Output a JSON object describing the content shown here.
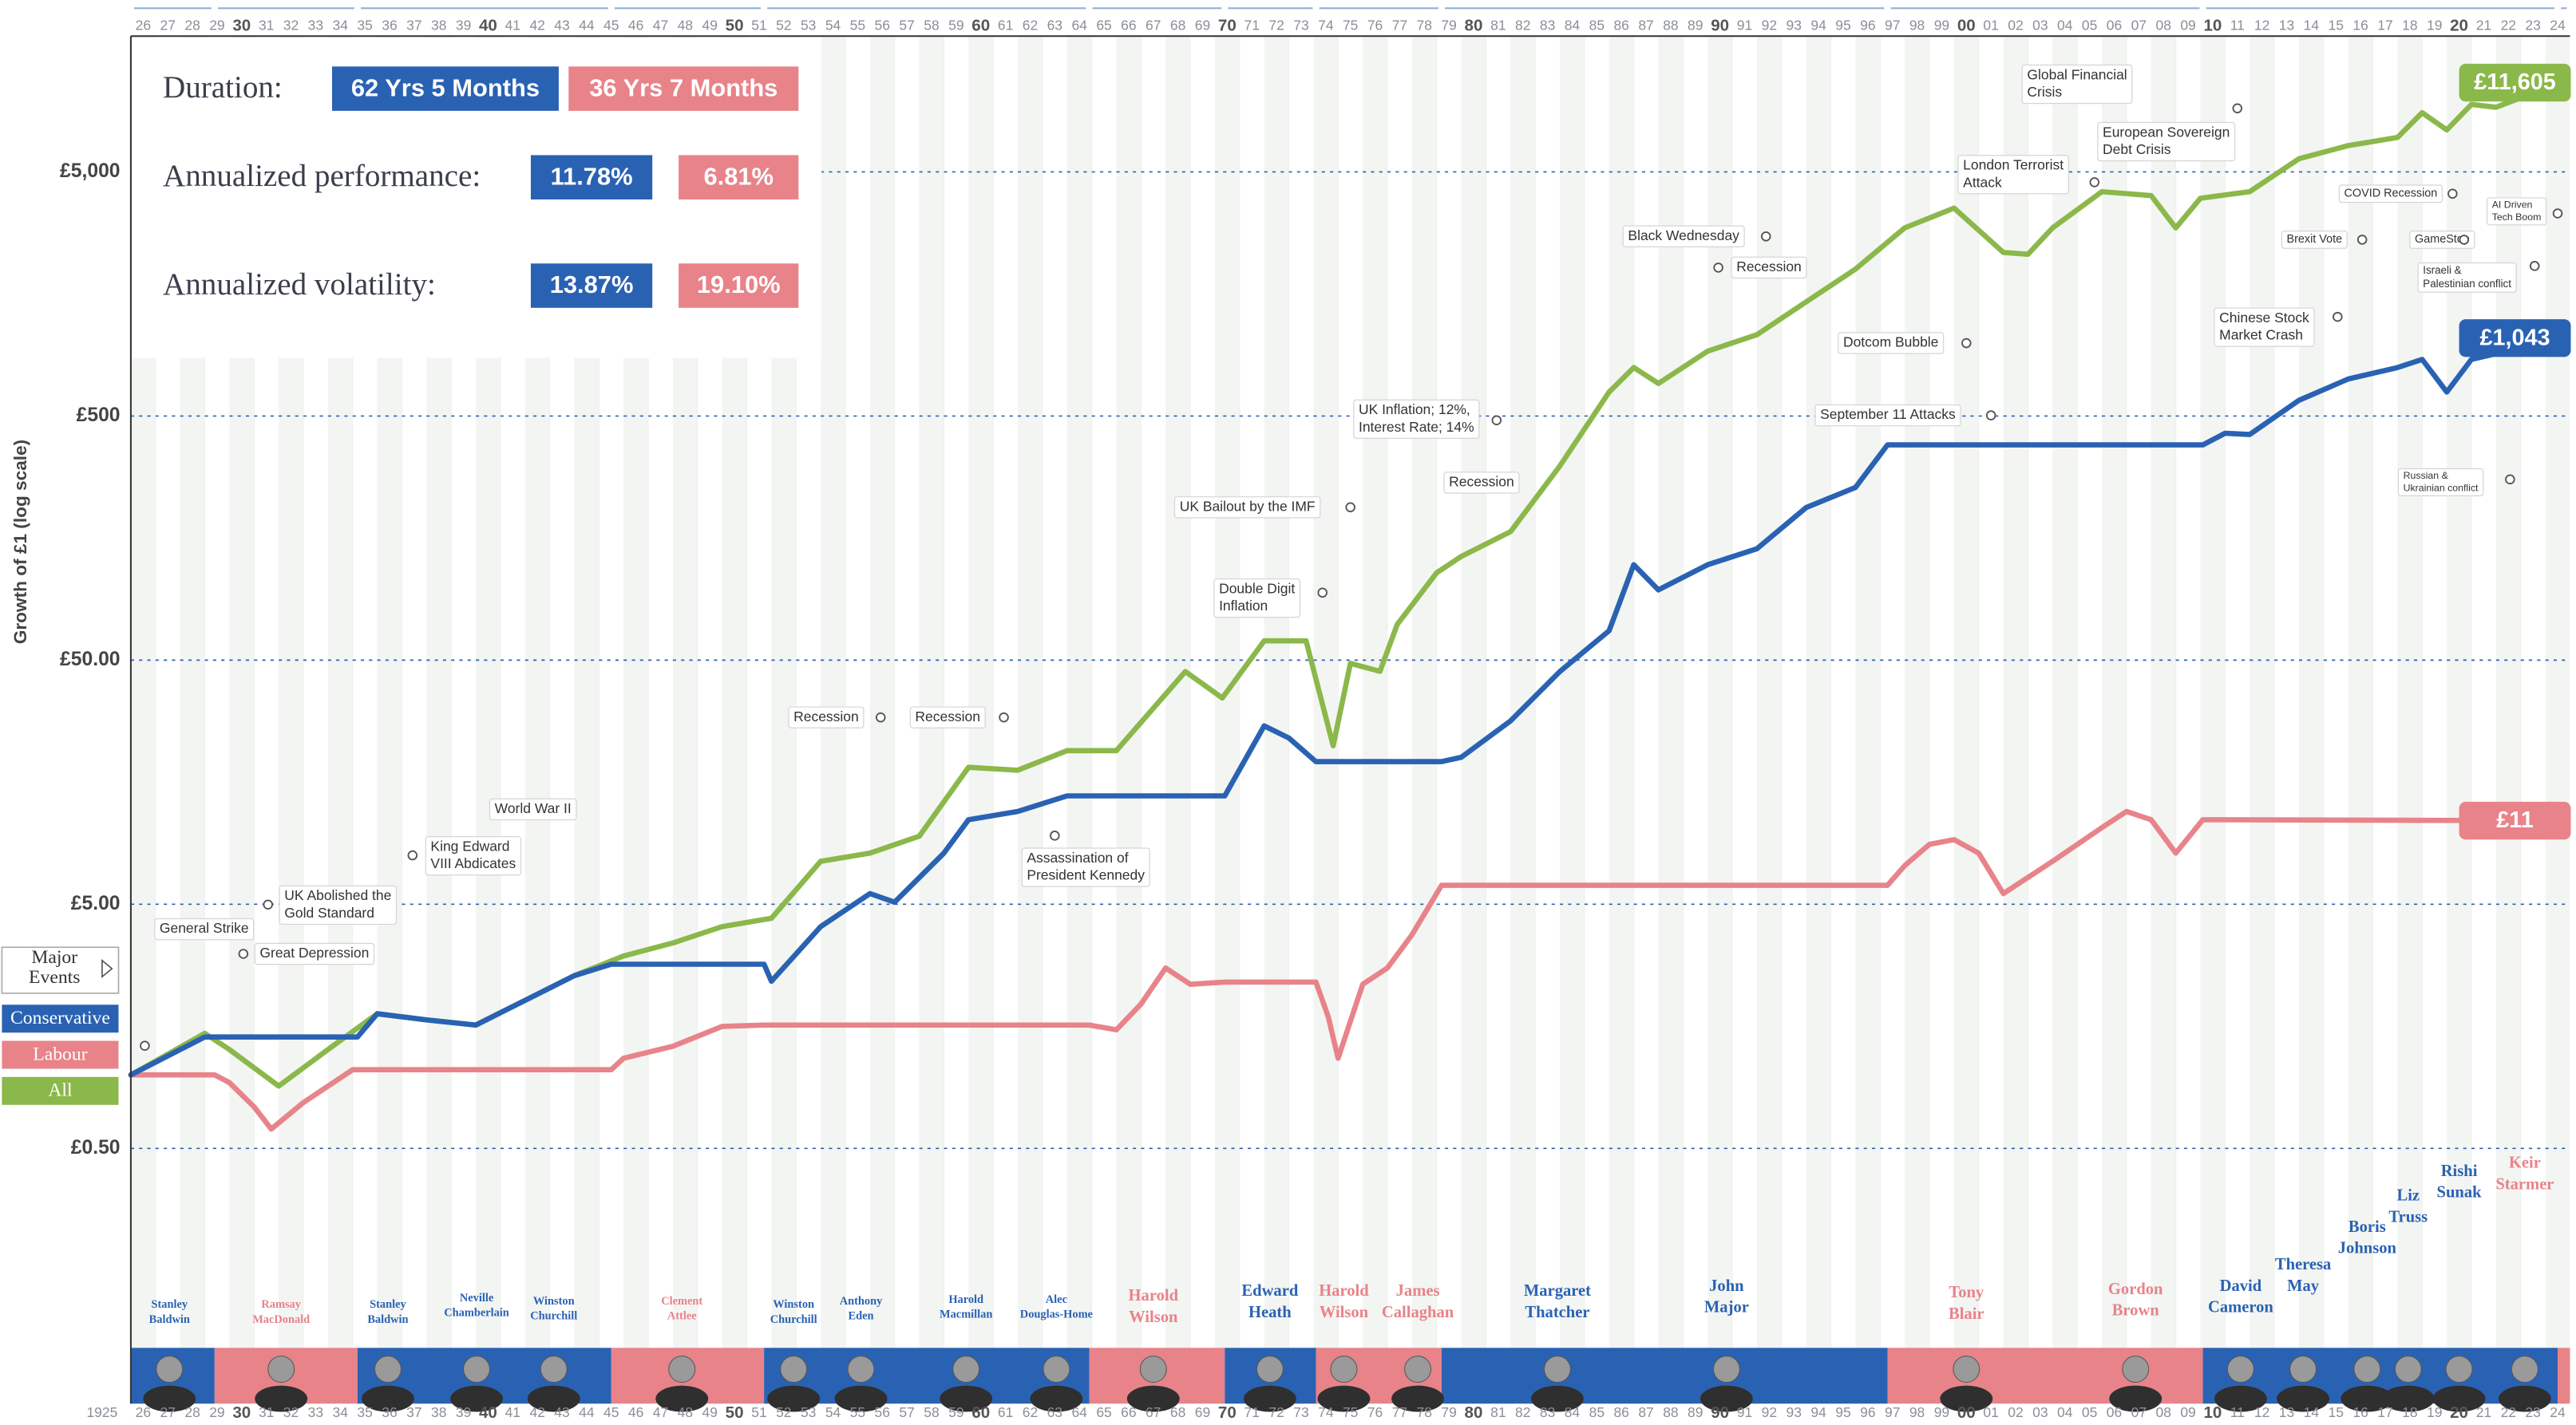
{
  "chart_data": {
    "type": "line",
    "y_label": "Growth of £1 (log scale)",
    "log_scale": true,
    "grid": true,
    "xlim": [
      1926,
      2025
    ],
    "ylim": [
      0.045,
      18000
    ],
    "yticks": [
      {
        "value": 0.5,
        "label": "£0.50"
      },
      {
        "value": 5,
        "label": "£5.00"
      },
      {
        "value": 50,
        "label": "£50.00"
      },
      {
        "value": 500,
        "label": "£500"
      },
      {
        "value": 5000,
        "label": "£5,000"
      }
    ],
    "x_start_label": "1925",
    "xticks": [
      {
        "value": 1926,
        "label": "26"
      },
      {
        "value": 1927,
        "label": "27"
      },
      {
        "value": 1928,
        "label": "28"
      },
      {
        "value": 1929,
        "label": "29"
      },
      {
        "value": 1930,
        "label": "30"
      },
      {
        "value": 1931,
        "label": "31"
      },
      {
        "value": 1932,
        "label": "32"
      },
      {
        "value": 1933,
        "label": "33"
      },
      {
        "value": 1934,
        "label": "34"
      },
      {
        "value": 1935,
        "label": "35"
      },
      {
        "value": 1936,
        "label": "36"
      },
      {
        "value": 1937,
        "label": "37"
      },
      {
        "value": 1938,
        "label": "38"
      },
      {
        "value": 1939,
        "label": "39"
      },
      {
        "value": 1940,
        "label": "40"
      },
      {
        "value": 1941,
        "label": "41"
      },
      {
        "value": 1942,
        "label": "42"
      },
      {
        "value": 1943,
        "label": "43"
      },
      {
        "value": 1944,
        "label": "44"
      },
      {
        "value": 1945,
        "label": "45"
      },
      {
        "value": 1946,
        "label": "46"
      },
      {
        "value": 1947,
        "label": "47"
      },
      {
        "value": 1948,
        "label": "48"
      },
      {
        "value": 1949,
        "label": "49"
      },
      {
        "value": 1950,
        "label": "50"
      },
      {
        "value": 1951,
        "label": "51"
      },
      {
        "value": 1952,
        "label": "52"
      },
      {
        "value": 1953,
        "label": "53"
      },
      {
        "value": 1954,
        "label": "54"
      },
      {
        "value": 1955,
        "label": "55"
      },
      {
        "value": 1956,
        "label": "56"
      },
      {
        "value": 1957,
        "label": "57"
      },
      {
        "value": 1958,
        "label": "58"
      },
      {
        "value": 1959,
        "label": "59"
      },
      {
        "value": 1960,
        "label": "60"
      },
      {
        "value": 1961,
        "label": "61"
      },
      {
        "value": 1962,
        "label": "62"
      },
      {
        "value": 1963,
        "label": "63"
      },
      {
        "value": 1964,
        "label": "64"
      },
      {
        "value": 1965,
        "label": "65"
      },
      {
        "value": 1966,
        "label": "66"
      },
      {
        "value": 1967,
        "label": "67"
      },
      {
        "value": 1968,
        "label": "68"
      },
      {
        "value": 1969,
        "label": "69"
      },
      {
        "value": 1970,
        "label": "70"
      },
      {
        "value": 1971,
        "label": "71"
      },
      {
        "value": 1972,
        "label": "72"
      },
      {
        "value": 1973,
        "label": "73"
      },
      {
        "value": 1974,
        "label": "74"
      },
      {
        "value": 1975,
        "label": "75"
      },
      {
        "value": 1976,
        "label": "76"
      },
      {
        "value": 1977,
        "label": "77"
      },
      {
        "value": 1978,
        "label": "78"
      },
      {
        "value": 1979,
        "label": "79"
      },
      {
        "value": 1980,
        "label": "80"
      },
      {
        "value": 1981,
        "label": "81"
      },
      {
        "value": 1982,
        "label": "82"
      },
      {
        "value": 1983,
        "label": "83"
      },
      {
        "value": 1984,
        "label": "84"
      },
      {
        "value": 1985,
        "label": "85"
      },
      {
        "value": 1986,
        "label": "86"
      },
      {
        "value": 1987,
        "label": "87"
      },
      {
        "value": 1988,
        "label": "88"
      },
      {
        "value": 1989,
        "label": "89"
      },
      {
        "value": 1990,
        "label": "90"
      },
      {
        "value": 1991,
        "label": "91"
      },
      {
        "value": 1992,
        "label": "92"
      },
      {
        "value": 1993,
        "label": "93"
      },
      {
        "value": 1994,
        "label": "94"
      },
      {
        "value": 1995,
        "label": "95"
      },
      {
        "value": 1996,
        "label": "96"
      },
      {
        "value": 1997,
        "label": "97"
      },
      {
        "value": 1998,
        "label": "98"
      },
      {
        "value": 1999,
        "label": "99"
      },
      {
        "value": 2000,
        "label": "00"
      },
      {
        "value": 2001,
        "label": "01"
      },
      {
        "value": 2002,
        "label": "02"
      },
      {
        "value": 2003,
        "label": "03"
      },
      {
        "value": 2004,
        "label": "04"
      },
      {
        "value": 2005,
        "label": "05"
      },
      {
        "value": 2006,
        "label": "06"
      },
      {
        "value": 2007,
        "label": "07"
      },
      {
        "value": 2008,
        "label": "08"
      },
      {
        "value": 2009,
        "label": "09"
      },
      {
        "value": 2010,
        "label": "10"
      },
      {
        "value": 2011,
        "label": "11"
      },
      {
        "value": 2012,
        "label": "12"
      },
      {
        "value": 2013,
        "label": "13"
      },
      {
        "value": 2014,
        "label": "14"
      },
      {
        "value": 2015,
        "label": "15"
      },
      {
        "value": 2016,
        "label": "16"
      },
      {
        "value": 2017,
        "label": "17"
      },
      {
        "value": 2018,
        "label": "18"
      },
      {
        "value": 2019,
        "label": "19"
      },
      {
        "value": 2020,
        "label": "20"
      },
      {
        "value": 2021,
        "label": "21"
      },
      {
        "value": 2022,
        "label": "22"
      },
      {
        "value": 2023,
        "label": "23"
      },
      {
        "value": 2024,
        "label": "24"
      }
    ],
    "series": [
      {
        "name": "Conservative",
        "color": "#2a62b3",
        "x": [
          1926,
          1929,
          1929.4,
          1935.2,
          1936,
          1938,
          1940,
          1942,
          1944,
          1945.5,
          1951.7,
          1952,
          1954,
          1956,
          1957,
          1959,
          1960,
          1962,
          1964,
          1964.9,
          1970.4,
          1972,
          1973,
          1974.1,
          1979.2,
          1980,
          1982,
          1984,
          1986,
          1987,
          1988,
          1990,
          1992,
          1994,
          1996,
          1997.3,
          2010.1,
          2011,
          2012,
          2014,
          2016,
          2018,
          2019,
          2020,
          2021,
          2022,
          2024,
          2024.5
        ],
        "values": [
          1,
          1.43,
          1.43,
          1.43,
          1.78,
          1.68,
          1.6,
          2.02,
          2.55,
          2.84,
          2.84,
          2.42,
          4.05,
          5.53,
          5.1,
          8.1,
          11.1,
          12,
          13.9,
          13.9,
          13.9,
          26.9,
          24,
          19.2,
          19.2,
          20,
          28.2,
          44.9,
          66,
          123,
          97,
          123,
          143,
          211,
          255,
          381,
          381,
          425,
          420,
          580,
          709,
          790,
          853,
          627,
          853,
          900,
          1029,
          1043
        ],
        "end_label": {
          "value": 1043,
          "label": "£1,043"
        }
      },
      {
        "name": "Labour",
        "color": "#e8838a",
        "x": [
          1926,
          1929.4,
          1930,
          1931,
          1931.7,
          1933,
          1935,
          1945.5,
          1946,
          1948,
          1950,
          1951.7,
          1964.9,
          1966,
          1967,
          1968,
          1969,
          1970.4,
          1974.1,
          1974.6,
          1975,
          1976,
          1977,
          1978,
          1979.2,
          1997.3,
          1998,
          1999,
          2000,
          2001,
          2002,
          2004,
          2006,
          2007,
          2008,
          2009,
          2010.1,
          2024.5
        ],
        "values": [
          1,
          1,
          0.93,
          0.74,
          0.6,
          0.77,
          1.05,
          1.05,
          1.17,
          1.31,
          1.58,
          1.6,
          1.6,
          1.53,
          1.95,
          2.74,
          2.35,
          2.4,
          2.4,
          1.73,
          1.17,
          2.35,
          2.74,
          3.75,
          5.98,
          5.98,
          7.2,
          8.8,
          9.2,
          8.1,
          5.53,
          7.5,
          10.3,
          12,
          11.1,
          8.1,
          11.1,
          11
        ],
        "end_label": {
          "value": 11,
          "label": "£11"
        }
      },
      {
        "name": "All",
        "color": "#8bb84a",
        "x": [
          1926,
          1929,
          1930,
          1932,
          1934,
          1936,
          1938,
          1940,
          1942,
          1944,
          1946,
          1948,
          1950,
          1952,
          1954,
          1956,
          1958,
          1960,
          1962,
          1964,
          1966,
          1968.8,
          1970.3,
          1972,
          1973.7,
          1974.8,
          1975.5,
          1976.7,
          1977.4,
          1979,
          1980,
          1982,
          1984,
          1986,
          1987,
          1988,
          1990,
          1992,
          1994,
          1996,
          1998,
          2000,
          2002,
          2003,
          2004,
          2006,
          2008,
          2009,
          2010,
          2012,
          2014,
          2016,
          2018,
          2019,
          2020,
          2021,
          2022,
          2024,
          2024.8
        ],
        "values": [
          1,
          1.48,
          1.27,
          0.9,
          1.27,
          1.78,
          1.68,
          1.6,
          2.02,
          2.55,
          3.07,
          3.47,
          4.05,
          4.38,
          7.5,
          8.1,
          9.5,
          18.2,
          17.7,
          21.3,
          21.3,
          44.9,
          35,
          60,
          60,
          22.3,
          48.5,
          45,
          70,
          114,
          133,
          168,
          312,
          627,
          790,
          680,
          922,
          1077,
          1468,
          2000,
          2950,
          3555,
          2340,
          2300,
          2950,
          4150,
          4000,
          2950,
          3900,
          4150,
          5660,
          6410,
          6920,
          8740,
          7430,
          9450,
          9200,
          11000,
          11605
        ],
        "end_label": {
          "value": 11605,
          "label": "£11,605"
        }
      }
    ],
    "governments": [
      {
        "party": "Conservative",
        "start": 1926,
        "end": 1929.4
      },
      {
        "party": "Labour",
        "start": 1929.4,
        "end": 1935.2
      },
      {
        "party": "Conservative",
        "start": 1935.2,
        "end": 1945.5
      },
      {
        "party": "Labour",
        "start": 1945.5,
        "end": 1951.7
      },
      {
        "party": "Conservative",
        "start": 1951.7,
        "end": 1964.9
      },
      {
        "party": "Labour",
        "start": 1964.9,
        "end": 1970.4
      },
      {
        "party": "Conservative",
        "start": 1970.4,
        "end": 1974.1
      },
      {
        "party": "Labour",
        "start": 1974.1,
        "end": 1979.2
      },
      {
        "party": "Conservative",
        "start": 1979.2,
        "end": 1997.3
      },
      {
        "party": "Labour",
        "start": 1997.3,
        "end": 2010.1
      },
      {
        "party": "Conservative",
        "start": 2010.1,
        "end": 2024.5
      },
      {
        "party": "Labour",
        "start": 2024.5,
        "end": 2025
      }
    ],
    "prime_ministers": [
      {
        "name": [
          "Stanley",
          "Baldwin"
        ],
        "party": "Conservative"
      },
      {
        "name": [
          "Ramsay",
          "MacDonald"
        ],
        "party": "Labour"
      },
      {
        "name": [
          "Stanley",
          "Baldwin"
        ],
        "party": "Conservative"
      },
      {
        "name": [
          "Neville",
          "Chamberlain"
        ],
        "party": "Conservative"
      },
      {
        "name": [
          "Winston",
          "Churchill"
        ],
        "party": "Conservative"
      },
      {
        "name": [
          "Clement",
          "Attlee"
        ],
        "party": "Labour"
      },
      {
        "name": [
          "Winston",
          "Churchill"
        ],
        "party": "Conservative"
      },
      {
        "name": [
          "Anthony",
          "Eden"
        ],
        "party": "Conservative"
      },
      {
        "name": [
          "Harold",
          "Macmillan"
        ],
        "party": "Conservative"
      },
      {
        "name": [
          "Alec",
          "Douglas-Home"
        ],
        "party": "Conservative"
      },
      {
        "name": [
          "Harold",
          "Wilson"
        ],
        "party": "Labour"
      },
      {
        "name": [
          "Edward",
          "Heath"
        ],
        "party": "Conservative"
      },
      {
        "name": [
          "Harold",
          "Wilson"
        ],
        "party": "Labour"
      },
      {
        "name": [
          "James",
          "Callaghan"
        ],
        "party": "Labour"
      },
      {
        "name": [
          "Margaret",
          "Thatcher"
        ],
        "party": "Conservative"
      },
      {
        "name": [
          "John",
          "Major"
        ],
        "party": "Conservative"
      },
      {
        "name": [
          "Tony",
          "Blair"
        ],
        "party": "Labour"
      },
      {
        "name": [
          "Gordon",
          "Brown"
        ],
        "party": "Labour"
      },
      {
        "name": [
          "David",
          "Cameron"
        ],
        "party": "Conservative"
      },
      {
        "name": [
          "Theresa",
          "May"
        ],
        "party": "Conservative"
      },
      {
        "name": [
          "Boris",
          "Johnson"
        ],
        "party": "Conservative"
      },
      {
        "name": [
          "Liz",
          "Truss"
        ],
        "party": "Conservative"
      },
      {
        "name": [
          "Rishi",
          "Sunak"
        ],
        "party": "Conservative"
      },
      {
        "name": [
          "Keir",
          "Starmer"
        ],
        "party": "Labour"
      }
    ],
    "events_toggle_label": [
      "Major",
      "Events"
    ],
    "events": [
      {
        "lines": [
          "General Strike"
        ]
      },
      {
        "lines": [
          "Great Depression"
        ]
      },
      {
        "lines": [
          "UK Abolished the",
          "Gold Standard"
        ]
      },
      {
        "lines": [
          "King Edward",
          "VIII Abdicates"
        ]
      },
      {
        "lines": [
          "World War II"
        ]
      },
      {
        "lines": [
          "Recession"
        ]
      },
      {
        "lines": [
          "Recession"
        ]
      },
      {
        "lines": [
          "Assassination of",
          "President Kennedy"
        ]
      },
      {
        "lines": [
          "UK Bailout by the IMF"
        ]
      },
      {
        "lines": [
          "Double Digit",
          "Inflation"
        ]
      },
      {
        "lines": [
          "UK Inflation; 12%,",
          "Interest Rate; 14%"
        ]
      },
      {
        "lines": [
          "Recession"
        ]
      },
      {
        "lines": [
          "Black Wednesday"
        ]
      },
      {
        "lines": [
          "Recession"
        ]
      },
      {
        "lines": [
          "Dotcom Bubble"
        ]
      },
      {
        "lines": [
          "September 11 Attacks"
        ]
      },
      {
        "lines": [
          "London Terrorist",
          "Attack"
        ]
      },
      {
        "lines": [
          "Global Financial",
          "Crisis"
        ]
      },
      {
        "lines": [
          "European Sovereign",
          "Debt Crisis"
        ]
      },
      {
        "lines": [
          "Chinese Stock",
          "Market Crash"
        ]
      },
      {
        "lines": [
          "COVID Recession"
        ]
      },
      {
        "lines": [
          "Brexit Vote"
        ]
      },
      {
        "lines": [
          "GameStop"
        ]
      },
      {
        "lines": [
          "AI Driven",
          "Tech Boom"
        ]
      },
      {
        "lines": [
          "Israeli &",
          "Palestinian conflict"
        ]
      },
      {
        "lines": [
          "Russian &",
          "Ukrainian conflict"
        ]
      }
    ],
    "stats": [
      {
        "label": "Duration:",
        "conservative": "62 Yrs 5 Months",
        "labour": "36 Yrs 7 Months"
      },
      {
        "label": "Annualized performance:",
        "conservative": "11.78%",
        "labour": "6.81%"
      },
      {
        "label": "Annualized volatility:",
        "conservative": "13.87%",
        "labour": "19.10%"
      }
    ]
  }
}
